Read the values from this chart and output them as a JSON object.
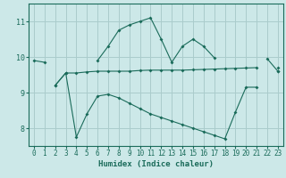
{
  "xlabel": "Humidex (Indice chaleur)",
  "bg_color": "#cce8e8",
  "grid_color": "#aacccc",
  "line_color": "#1a6b5a",
  "x": [
    0,
    1,
    2,
    3,
    4,
    5,
    6,
    7,
    8,
    9,
    10,
    11,
    12,
    13,
    14,
    15,
    16,
    17,
    18,
    19,
    20,
    21,
    22,
    23
  ],
  "line1": [
    9.9,
    9.85,
    null,
    null,
    null,
    null,
    9.9,
    10.3,
    10.75,
    10.9,
    11.0,
    11.1,
    10.5,
    9.85,
    10.3,
    10.5,
    10.3,
    9.98,
    null,
    null,
    null,
    null,
    9.95,
    9.6
  ],
  "line2": [
    null,
    null,
    9.2,
    9.55,
    9.55,
    9.58,
    9.6,
    9.6,
    9.6,
    9.6,
    9.62,
    9.63,
    9.63,
    9.63,
    9.63,
    9.64,
    9.65,
    9.66,
    9.67,
    9.68,
    9.69,
    9.7,
    null,
    9.7
  ],
  "line3": [
    null,
    null,
    9.2,
    9.55,
    7.75,
    8.4,
    8.9,
    8.95,
    8.85,
    8.7,
    8.55,
    8.4,
    8.3,
    8.2,
    8.1,
    8.0,
    7.9,
    7.8,
    7.7,
    8.45,
    9.15,
    9.15,
    null,
    9.6
  ],
  "ylim": [
    7.5,
    11.5
  ],
  "yticks": [
    8,
    9,
    10,
    11
  ],
  "xlim": [
    -0.5,
    23.5
  ]
}
